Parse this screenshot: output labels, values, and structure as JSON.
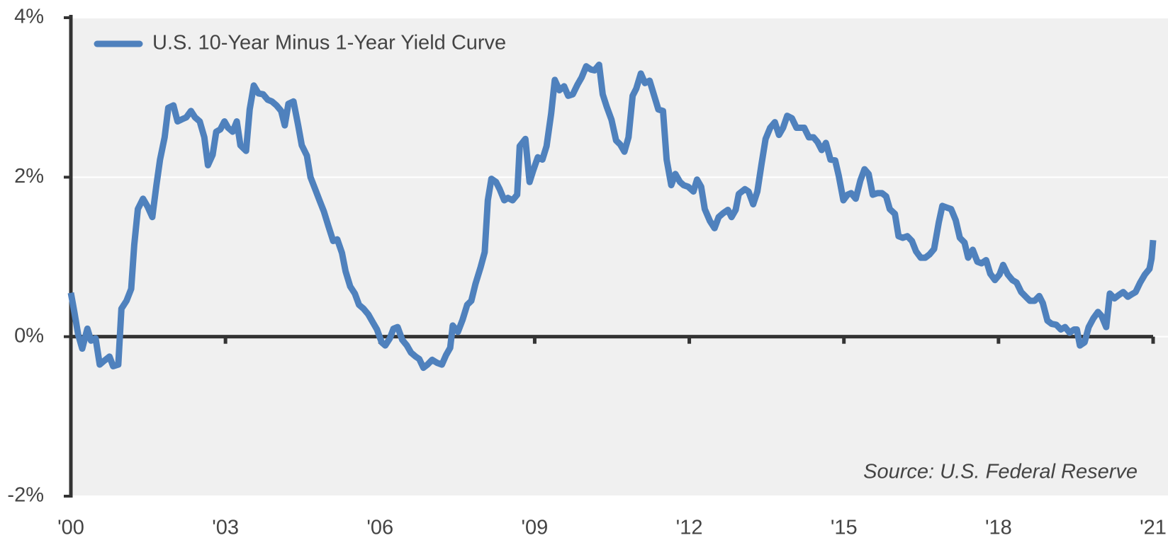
{
  "chart_data": {
    "type": "line",
    "source": "Source: U.S. Federal Reserve",
    "legend": "upper left",
    "grid": true,
    "background": "#f0f0f0",
    "xlim": [
      2000,
      2021
    ],
    "ylim": [
      -2,
      4
    ],
    "xticks": [
      {
        "value": 2000,
        "label": "'00"
      },
      {
        "value": 2003,
        "label": "'03"
      },
      {
        "value": 2006,
        "label": "'06"
      },
      {
        "value": 2009,
        "label": "'09"
      },
      {
        "value": 2012,
        "label": "'12"
      },
      {
        "value": 2015,
        "label": "'15"
      },
      {
        "value": 2018,
        "label": "'18"
      },
      {
        "value": 2021,
        "label": "'21"
      }
    ],
    "yticks": [
      {
        "value": -2,
        "label": "-2%"
      },
      {
        "value": 0,
        "label": "0%"
      },
      {
        "value": 2,
        "label": "2%"
      },
      {
        "value": 4,
        "label": "4%"
      }
    ],
    "x": [
      2000.0,
      2000.07,
      2000.14,
      2000.22,
      2000.32,
      2000.39,
      2000.48,
      2000.56,
      2000.65,
      2000.75,
      2000.82,
      2000.92,
      2000.98,
      2001.08,
      2001.17,
      2001.23,
      2001.3,
      2001.4,
      2001.49,
      2001.58,
      2001.66,
      2001.73,
      2001.82,
      2001.89,
      2001.99,
      2002.07,
      2002.17,
      2002.24,
      2002.33,
      2002.41,
      2002.5,
      2002.59,
      2002.66,
      2002.75,
      2002.82,
      2002.9,
      2002.98,
      2003.05,
      2003.14,
      2003.22,
      2003.29,
      2003.4,
      2003.47,
      2003.55,
      2003.64,
      2003.73,
      2003.82,
      2003.9,
      2003.99,
      2004.08,
      2004.15,
      2004.22,
      2004.32,
      2004.41,
      2004.48,
      2004.58,
      2004.65,
      2004.74,
      2004.83,
      2004.91,
      2005.0,
      2005.09,
      2005.17,
      2005.26,
      2005.33,
      2005.42,
      2005.51,
      2005.59,
      2005.68,
      2005.77,
      2005.85,
      2005.94,
      2006.03,
      2006.1,
      2006.19,
      2006.26,
      2006.34,
      2006.43,
      2006.52,
      2006.6,
      2006.69,
      2006.76,
      2006.84,
      2006.92,
      2007.01,
      2007.11,
      2007.2,
      2007.28,
      2007.36,
      2007.41,
      2007.51,
      2007.6,
      2007.69,
      2007.77,
      2007.85,
      2007.95,
      2008.03,
      2008.09,
      2008.16,
      2008.25,
      2008.32,
      2008.41,
      2008.48,
      2008.57,
      2008.66,
      2008.71,
      2008.82,
      2008.9,
      2008.97,
      2009.06,
      2009.15,
      2009.23,
      2009.32,
      2009.39,
      2009.48,
      2009.57,
      2009.65,
      2009.74,
      2009.83,
      2009.91,
      2010.0,
      2010.09,
      2010.16,
      2010.25,
      2010.32,
      2010.4,
      2010.49,
      2010.58,
      2010.66,
      2010.74,
      2010.82,
      2010.9,
      2010.97,
      2011.06,
      2011.14,
      2011.23,
      2011.32,
      2011.4,
      2011.49,
      2011.56,
      2011.65,
      2011.73,
      2011.82,
      2011.89,
      2011.98,
      2012.08,
      2012.15,
      2012.23,
      2012.3,
      2012.4,
      2012.49,
      2012.57,
      2012.66,
      2012.75,
      2012.82,
      2012.9,
      2012.96,
      2013.08,
      2013.15,
      2013.24,
      2013.32,
      2013.4,
      2013.48,
      2013.57,
      2013.66,
      2013.74,
      2013.82,
      2013.9,
      2013.99,
      2014.08,
      2014.16,
      2014.23,
      2014.32,
      2014.41,
      2014.49,
      2014.57,
      2014.65,
      2014.74,
      2014.83,
      2014.9,
      2014.99,
      2015.07,
      2015.14,
      2015.23,
      2015.32,
      2015.4,
      2015.48,
      2015.56,
      2015.65,
      2015.74,
      2015.82,
      2015.89,
      2015.99,
      2016.06,
      2016.14,
      2016.23,
      2016.32,
      2016.4,
      2016.49,
      2016.58,
      2016.66,
      2016.75,
      2016.84,
      2016.91,
      2016.99,
      2017.08,
      2017.17,
      2017.25,
      2017.34,
      2017.41,
      2017.5,
      2017.59,
      2017.67,
      2017.76,
      2017.84,
      2017.93,
      2018.02,
      2018.09,
      2018.18,
      2018.27,
      2018.35,
      2018.44,
      2018.53,
      2018.61,
      2018.7,
      2018.79,
      2018.86,
      2018.95,
      2019.03,
      2019.12,
      2019.21,
      2019.29,
      2019.38,
      2019.47,
      2019.52,
      2019.58,
      2019.67,
      2019.75,
      2019.84,
      2019.93,
      2020.0,
      2020.09,
      2020.16,
      2020.25,
      2020.33,
      2020.42,
      2020.51,
      2020.58,
      2020.66,
      2020.75,
      2020.84,
      2020.93,
      2020.97,
      2021.0
    ],
    "series": [
      {
        "name": "U.S. 10-Year Minus 1-Year Yield Curve",
        "color": "#4f81bd",
        "values": [
          0.55,
          0.3,
          0.03,
          -0.15,
          0.1,
          -0.05,
          -0.02,
          -0.35,
          -0.3,
          -0.25,
          -0.37,
          -0.35,
          0.35,
          0.45,
          0.6,
          1.15,
          1.6,
          1.73,
          1.63,
          1.5,
          1.9,
          2.22,
          2.5,
          2.87,
          2.9,
          2.7,
          2.73,
          2.75,
          2.83,
          2.75,
          2.7,
          2.5,
          2.15,
          2.28,
          2.57,
          2.6,
          2.7,
          2.62,
          2.57,
          2.7,
          2.4,
          2.33,
          2.85,
          3.15,
          3.05,
          3.04,
          2.97,
          2.95,
          2.9,
          2.83,
          2.65,
          2.92,
          2.95,
          2.65,
          2.4,
          2.27,
          2.0,
          1.85,
          1.7,
          1.57,
          1.38,
          1.2,
          1.22,
          1.05,
          0.82,
          0.63,
          0.54,
          0.4,
          0.35,
          0.28,
          0.19,
          0.09,
          -0.07,
          -0.11,
          -0.02,
          0.1,
          0.12,
          -0.04,
          -0.11,
          -0.2,
          -0.25,
          -0.28,
          -0.39,
          -0.35,
          -0.29,
          -0.33,
          -0.35,
          -0.23,
          -0.14,
          0.14,
          0.06,
          0.21,
          0.4,
          0.45,
          0.66,
          0.87,
          1.06,
          1.71,
          1.98,
          1.94,
          1.85,
          1.71,
          1.74,
          1.71,
          1.78,
          2.39,
          2.48,
          1.94,
          2.08,
          2.25,
          2.22,
          2.39,
          2.8,
          3.22,
          3.09,
          3.14,
          3.02,
          3.04,
          3.16,
          3.25,
          3.39,
          3.35,
          3.34,
          3.41,
          3.04,
          2.88,
          2.72,
          2.46,
          2.41,
          2.32,
          2.5,
          3.02,
          3.11,
          3.3,
          3.18,
          3.21,
          3.02,
          2.85,
          2.83,
          2.22,
          1.9,
          2.04,
          1.94,
          1.9,
          1.88,
          1.82,
          1.97,
          1.88,
          1.6,
          1.45,
          1.36,
          1.5,
          1.55,
          1.59,
          1.5,
          1.59,
          1.79,
          1.85,
          1.82,
          1.66,
          1.82,
          2.16,
          2.48,
          2.62,
          2.69,
          2.53,
          2.62,
          2.77,
          2.74,
          2.62,
          2.62,
          2.62,
          2.5,
          2.5,
          2.44,
          2.34,
          2.43,
          2.22,
          2.21,
          2.02,
          1.71,
          1.78,
          1.8,
          1.73,
          1.96,
          2.1,
          2.04,
          1.78,
          1.8,
          1.8,
          1.76,
          1.6,
          1.54,
          1.26,
          1.24,
          1.26,
          1.2,
          1.07,
          0.99,
          0.99,
          1.03,
          1.1,
          1.43,
          1.64,
          1.62,
          1.6,
          1.46,
          1.24,
          1.18,
          0.99,
          1.09,
          0.94,
          0.92,
          0.96,
          0.79,
          0.71,
          0.78,
          0.9,
          0.78,
          0.71,
          0.68,
          0.56,
          0.5,
          0.45,
          0.45,
          0.51,
          0.42,
          0.2,
          0.16,
          0.15,
          0.09,
          0.12,
          0.05,
          0.09,
          0.09,
          -0.11,
          -0.07,
          0.12,
          0.23,
          0.31,
          0.26,
          0.12,
          0.54,
          0.48,
          0.52,
          0.56,
          0.5,
          0.53,
          0.56,
          0.68,
          0.78,
          0.85,
          0.98,
          1.21
        ]
      }
    ]
  }
}
